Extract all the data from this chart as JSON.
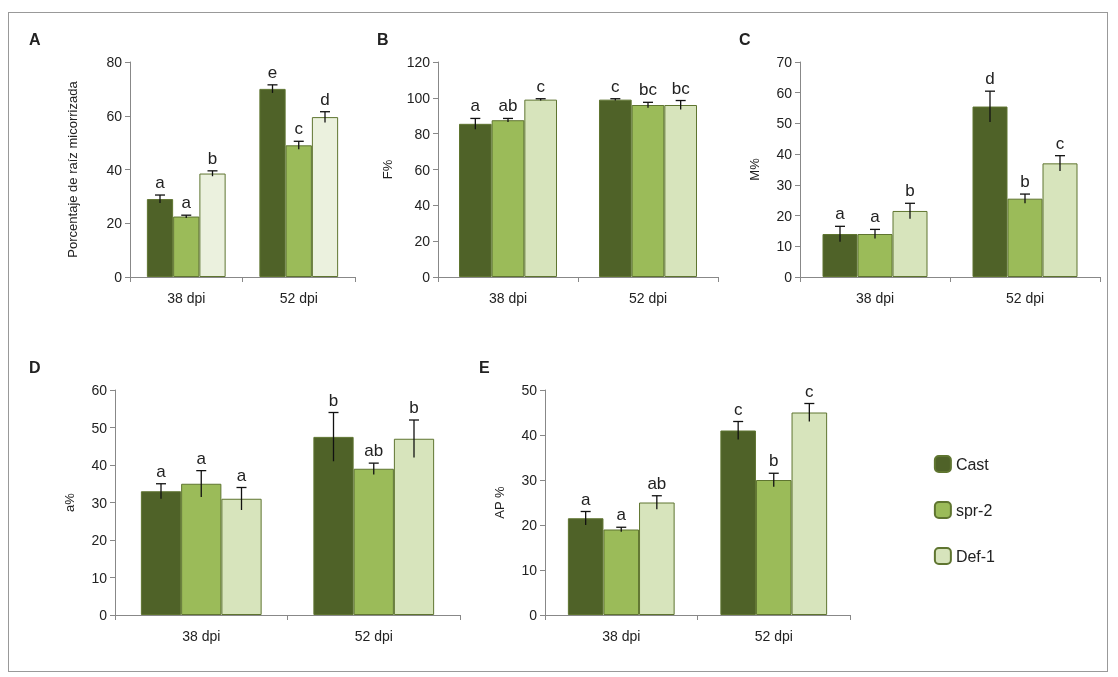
{
  "chart_data": [
    {
      "type": "bar",
      "title": "A",
      "ylabel": "Porcentaje de raíz micorrizada",
      "categories": [
        "38 dpi",
        "52 dpi"
      ],
      "ylim": [
        0,
        80
      ],
      "yticks": [
        0,
        20,
        40,
        60,
        80
      ],
      "grid": false,
      "legend": false,
      "series": [
        {
          "color": "#4f6228",
          "values": [
            29,
            70
          ],
          "errors": [
            1.5,
            1.5
          ],
          "value_labels": [
            "a",
            "e"
          ]
        },
        {
          "color": "#9bbb59",
          "values": [
            22.5,
            49
          ],
          "errors": [
            0.5,
            1.5
          ],
          "value_labels": [
            "a",
            "c"
          ]
        },
        {
          "color": "#ebf1de",
          "values": [
            38.5,
            59.5
          ],
          "errors": [
            1,
            2
          ],
          "value_labels": [
            "b",
            "d"
          ]
        }
      ]
    },
    {
      "type": "bar",
      "title": "B",
      "ylabel": "F%",
      "categories": [
        "38 dpi",
        "52 dpi"
      ],
      "ylim": [
        0,
        120
      ],
      "yticks": [
        0,
        20,
        40,
        60,
        80,
        100,
        120
      ],
      "grid": false,
      "legend": false,
      "series": [
        {
          "color": "#4f6228",
          "values": [
            85.5,
            99
          ],
          "errors": [
            3,
            0.5
          ],
          "value_labels": [
            "a",
            "c"
          ]
        },
        {
          "color": "#9bbb59",
          "values": [
            87.5,
            96
          ],
          "errors": [
            1,
            1.5
          ],
          "value_labels": [
            "ab",
            "bc"
          ]
        },
        {
          "color": "#d7e4bc",
          "values": [
            99,
            96
          ],
          "errors": [
            0.5,
            2.5
          ],
          "value_labels": [
            "c",
            "bc"
          ]
        }
      ]
    },
    {
      "type": "bar",
      "title": "C",
      "ylabel": "M%",
      "categories": [
        "38 dpi",
        "52 dpi"
      ],
      "ylim": [
        0,
        70
      ],
      "yticks": [
        0,
        10,
        20,
        30,
        40,
        50,
        60,
        70
      ],
      "grid": false,
      "legend": false,
      "series": [
        {
          "color": "#4f6228",
          "values": [
            14,
            55.5
          ],
          "errors": [
            2.5,
            5
          ],
          "value_labels": [
            "a",
            "d"
          ]
        },
        {
          "color": "#9bbb59",
          "values": [
            14,
            25.5
          ],
          "errors": [
            1.5,
            1.5
          ],
          "value_labels": [
            "a",
            "b"
          ]
        },
        {
          "color": "#d7e4bc",
          "values": [
            21.5,
            37
          ],
          "errors": [
            2.5,
            2.5
          ],
          "value_labels": [
            "b",
            "c"
          ]
        }
      ]
    },
    {
      "type": "bar",
      "title": "D",
      "ylabel": "a%",
      "categories": [
        "38 dpi",
        "52 dpi"
      ],
      "ylim": [
        0,
        60
      ],
      "yticks": [
        0,
        10,
        20,
        30,
        40,
        50,
        60
      ],
      "grid": false,
      "legend": false,
      "series": [
        {
          "color": "#4f6228",
          "values": [
            33,
            47.5
          ],
          "errors": [
            2,
            6.5
          ],
          "value_labels": [
            "a",
            "b"
          ]
        },
        {
          "color": "#9bbb59",
          "values": [
            35,
            39
          ],
          "errors": [
            3.5,
            1.5
          ],
          "value_labels": [
            "a",
            "ab"
          ]
        },
        {
          "color": "#d7e4bc",
          "values": [
            31,
            47
          ],
          "errors": [
            3,
            5
          ],
          "value_labels": [
            "a",
            "b"
          ]
        }
      ]
    },
    {
      "type": "bar",
      "title": "E",
      "ylabel": "AP %",
      "categories": [
        "38 dpi",
        "52 dpi"
      ],
      "ylim": [
        0,
        50
      ],
      "yticks": [
        0,
        10,
        20,
        30,
        40,
        50
      ],
      "grid": false,
      "legend": "right",
      "series": [
        {
          "name": "Cast",
          "color": "#4f6228",
          "values": [
            21.5,
            41
          ],
          "errors": [
            1.5,
            2
          ],
          "value_labels": [
            "a",
            "c"
          ]
        },
        {
          "name": "spr-2",
          "color": "#9bbb59",
          "values": [
            19,
            30
          ],
          "errors": [
            0.5,
            1.5
          ],
          "value_labels": [
            "a",
            "b"
          ]
        },
        {
          "name": "Def-1",
          "color": "#d7e4bc",
          "values": [
            25,
            45
          ],
          "errors": [
            1.5,
            2
          ],
          "value_labels": [
            "ab",
            "c"
          ]
        }
      ]
    }
  ]
}
